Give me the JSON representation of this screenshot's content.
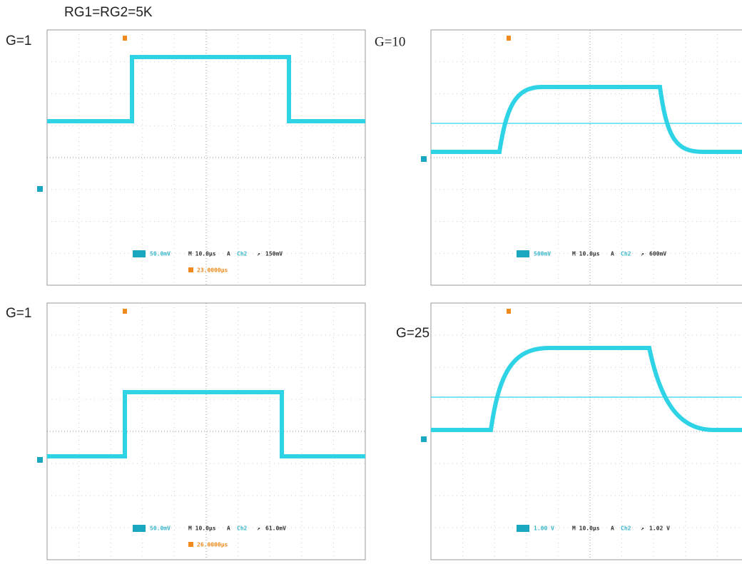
{
  "title": "RG1=RG2=5K",
  "panels": [
    {
      "gain": "G=1",
      "readout": {
        "scale": "50.0mV",
        "timebase": "M 10.0µs",
        "trigger_mode": "A",
        "trigger_source": "Ch2",
        "trigger_level": "150mV",
        "position": "23.0000µs"
      }
    },
    {
      "gain": "G=10",
      "readout": {
        "scale": "500mV",
        "timebase": "M 10.0µs",
        "trigger_mode": "A",
        "trigger_source": "Ch2",
        "trigger_level": "600mV"
      }
    },
    {
      "gain": "G=1",
      "readout": {
        "scale": "50.0mV",
        "timebase": "M 10.0µs",
        "trigger_mode": "A",
        "trigger_source": "Ch2",
        "trigger_level": "61.0mV",
        "position": "26.0000µs"
      }
    },
    {
      "gain": "G=25",
      "readout": {
        "scale": "1.00 V",
        "timebase": "M 10.0µs",
        "trigger_mode": "A",
        "trigger_source": "Ch2",
        "trigger_level": "1.02 V"
      }
    }
  ]
}
